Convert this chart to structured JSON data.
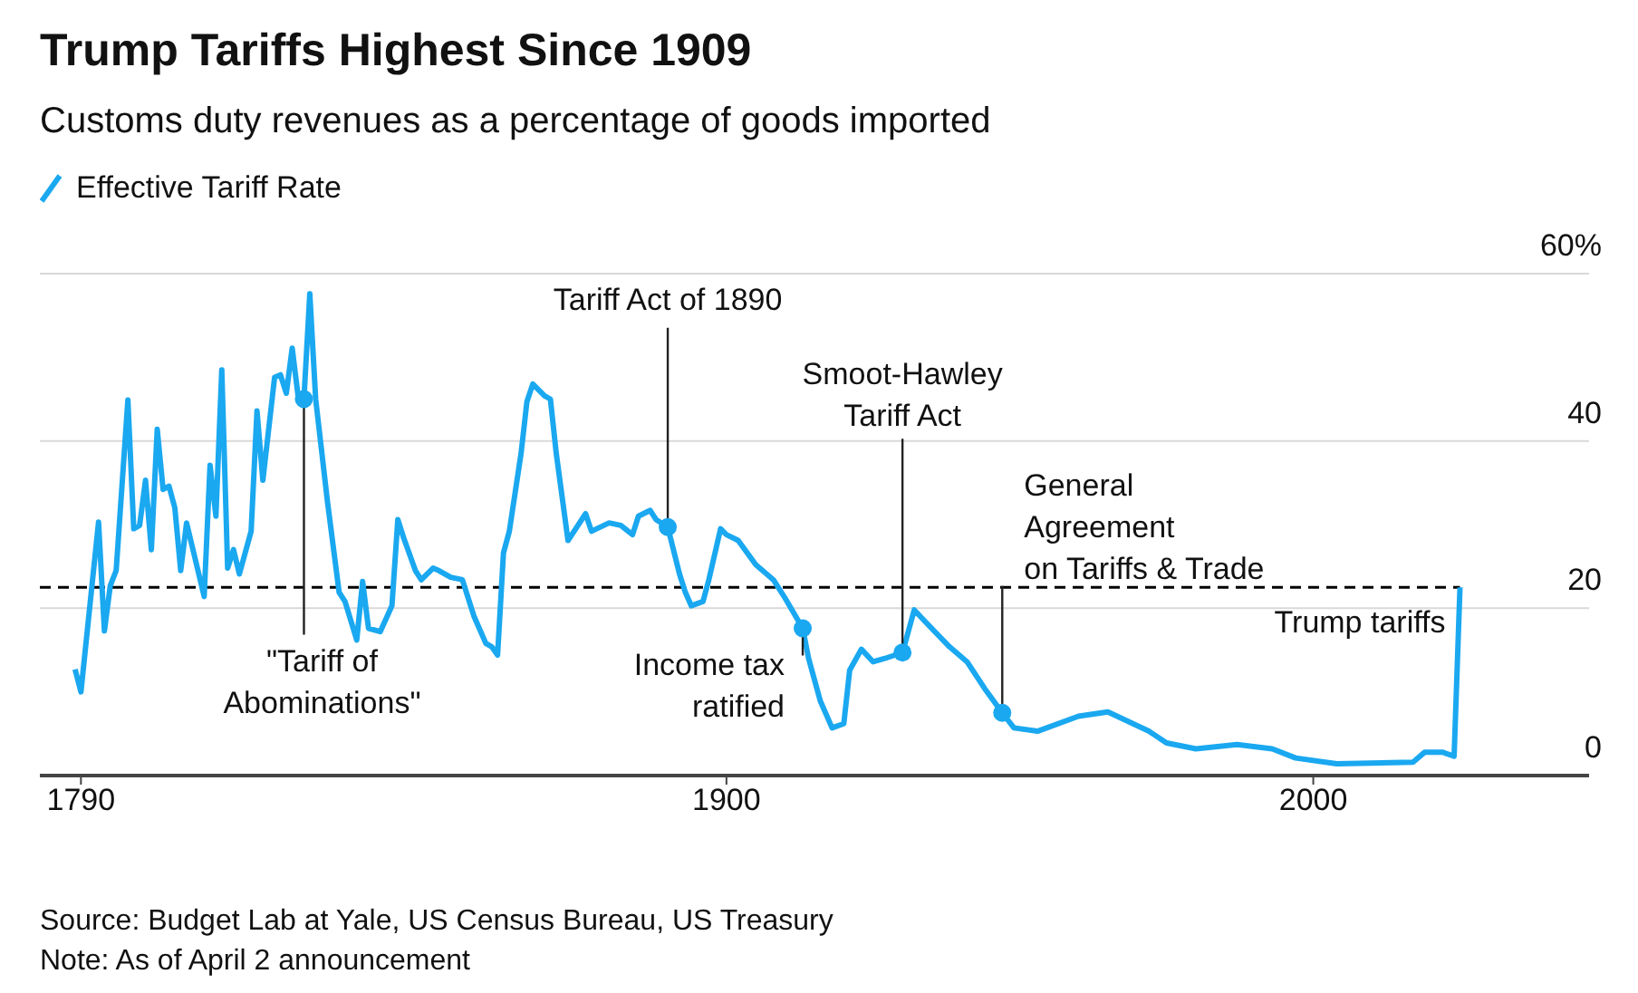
{
  "chart_data": {
    "type": "line",
    "title": "Trump Tariffs Highest Since 1909",
    "subtitle": "Customs duty revenues as a percentage of goods imported",
    "x": [
      1789,
      1790,
      1793,
      1794,
      1795,
      1796,
      1798,
      1799,
      1800,
      1801,
      1802,
      1803,
      1804,
      1805,
      1806,
      1807,
      1808,
      1811,
      1812,
      1813,
      1814,
      1815,
      1816,
      1817,
      1819,
      1820,
      1821,
      1823,
      1824,
      1825,
      1826,
      1827,
      1828,
      1829,
      1830,
      1832,
      1834,
      1835,
      1837,
      1838,
      1839,
      1841,
      1843,
      1844,
      1845,
      1847,
      1848,
      1850,
      1851,
      1853,
      1855,
      1857,
      1859,
      1860,
      1861,
      1862,
      1863,
      1865,
      1866,
      1867,
      1869,
      1870,
      1871,
      1873,
      1876,
      1877,
      1880,
      1882,
      1884,
      1885,
      1887,
      1888,
      1890,
      1892,
      1893,
      1894,
      1896,
      1897,
      1899,
      1900,
      1902,
      1905,
      1908,
      1910,
      1913,
      1914,
      1916,
      1918,
      1920,
      1921,
      1923,
      1925,
      1927,
      1930,
      1932,
      1934,
      1938,
      1941,
      1944,
      1947,
      1949,
      1953,
      1960,
      1965,
      1972,
      1975,
      1980,
      1987,
      1993,
      1997,
      2004,
      2017,
      2019,
      2022,
      2024,
      2025
    ],
    "series": [
      {
        "name": "Effective Tariff Rate",
        "color": "#1aa8f0",
        "values": [
          12.7,
          10,
          30.3,
          17.3,
          22.7,
          24.5,
          44.9,
          29.5,
          29.9,
          35.3,
          27,
          41.4,
          34.2,
          34.6,
          32,
          24.5,
          30.2,
          21.4,
          37.1,
          31,
          48.5,
          24.8,
          27,
          24.1,
          29.2,
          43.6,
          35.3,
          47.6,
          47.9,
          45.7,
          51.1,
          45.4,
          45,
          57.6,
          45,
          32.8,
          21.9,
          20.8,
          16.2,
          23.2,
          17.6,
          17.2,
          20.3,
          30.6,
          28.4,
          24.5,
          23.4,
          24.8,
          24.5,
          23.7,
          23.4,
          19,
          15.8,
          15.4,
          14.4,
          26.6,
          29.2,
          38.5,
          44.7,
          46.8,
          45.4,
          45,
          38.5,
          28.1,
          31.3,
          29.2,
          30.2,
          29.9,
          28.8,
          31,
          31.7,
          30.6,
          29.7,
          24.1,
          21.9,
          20.3,
          20.8,
          23.4,
          29.5,
          28.8,
          28.1,
          25.2,
          23.4,
          21.2,
          17.6,
          14,
          8.9,
          5.7,
          6.2,
          12.6,
          15.1,
          13.6,
          14,
          14.7,
          19.8,
          18.3,
          15.4,
          13.6,
          10.4,
          7.5,
          5.7,
          5.3,
          7.1,
          7.6,
          5.3,
          3.9,
          3.2,
          3.7,
          3.2,
          2.1,
          1.4,
          1.6,
          2.8,
          2.8,
          2.3,
          22.5
        ]
      }
    ],
    "xlim": [
      1783,
      2047
    ],
    "xticks": [
      1790,
      1900,
      2000
    ],
    "ylim": [
      0,
      60
    ],
    "yticks": [
      0,
      20,
      40,
      {
        "value": 60,
        "label": "60%"
      }
    ],
    "grid": "y",
    "legend": "top left",
    "marker": "none",
    "line_style": "solid",
    "ref_lines": [
      {
        "axis": "y",
        "value": 22.5,
        "label": "Trump tariffs",
        "color": "#000000",
        "line_style": "dashed"
      }
    ],
    "annotations": [
      {
        "text": "\"Tariff of\nAbominations\"",
        "x": 1828,
        "y": 45
      },
      {
        "text": "Tariff Act of 1890",
        "x": 1890,
        "y": 29.7
      },
      {
        "text": "Income tax\nratified",
        "x": 1913,
        "y": 17.6
      },
      {
        "text": "Smoot-Hawley\nTariff Act",
        "x": 1930,
        "y": 14.7
      },
      {
        "text": "General\nAgreement\non Tariffs & Trade",
        "x": 1947,
        "y": 7.5
      },
      "Source: Budget Lab at Yale, US Census Bureau, US Treasury",
      "Note: As of April 2 announcement"
    ]
  }
}
